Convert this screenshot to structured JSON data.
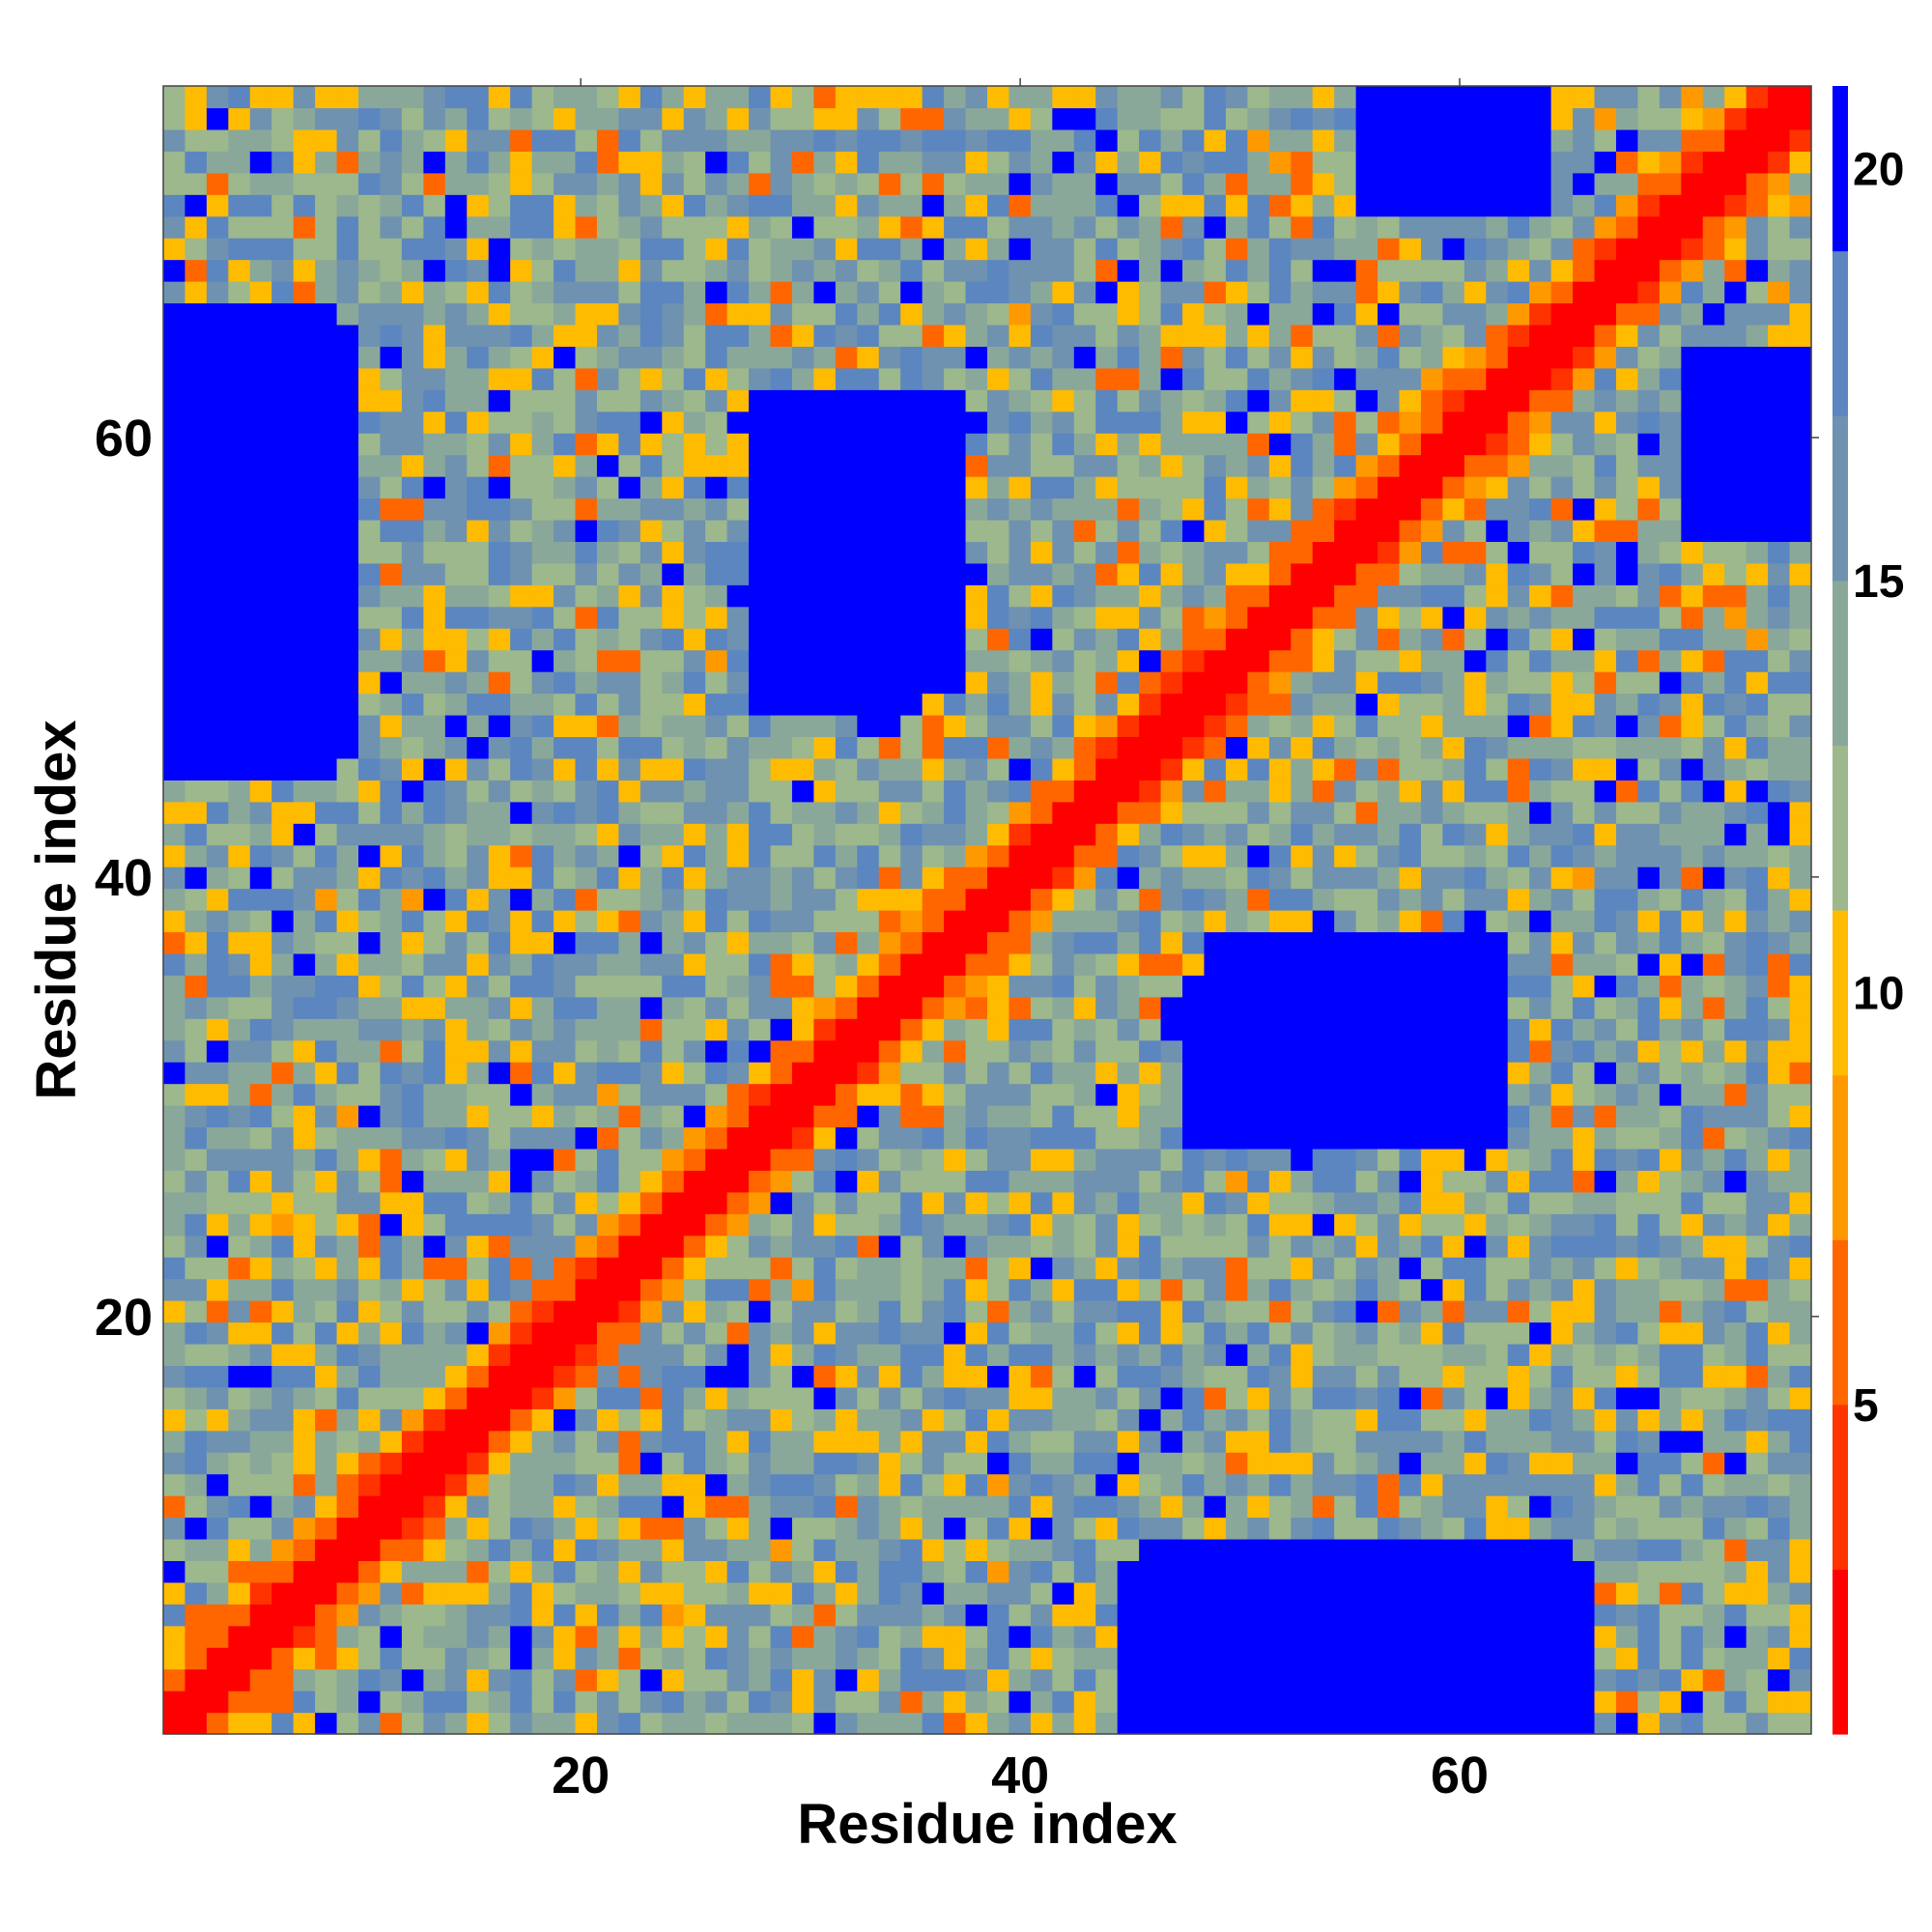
{
  "chart_data": {
    "type": "heatmap",
    "title": "",
    "xlabel": "Residue index",
    "ylabel": "Residue index",
    "n_residues": 76,
    "xlim": [
      1,
      76
    ],
    "ylim": [
      1,
      76
    ],
    "x_ticks": [
      "20",
      "40",
      "60"
    ],
    "y_ticks": [
      "20",
      "40",
      "60"
    ],
    "x_tick_values": [
      20,
      40,
      60
    ],
    "y_tick_values": [
      20,
      40,
      60
    ],
    "colorbar": {
      "range": [
        1,
        21
      ],
      "ticks": [
        "5",
        "10",
        "15",
        "20"
      ],
      "tick_values": [
        5,
        10,
        15,
        20
      ],
      "colors": [
        "#ff0000",
        "#ff3300",
        "#ff6600",
        "#ff9900",
        "#ffbb00",
        "#9cb88c",
        "#8aa89a",
        "#6f92b0",
        "#5b86c0",
        "#0000ff"
      ]
    },
    "value_unit_note": "",
    "values_encoding": "symmetric distance matrix; diagonal ~0, blocks of high distance (>=21) shown blue",
    "high_distance_blocks": [
      {
        "x_range": [
          1,
          9
        ],
        "y_range": [
          46,
          64
        ],
        "value": 21
      },
      {
        "x_range": [
          28,
          35
        ],
        "y_range": [
          48,
          62
        ],
        "value": 21
      },
      {
        "x_range": [
          49,
          62
        ],
        "y_range": [
          28,
          37
        ],
        "value": 21
      },
      {
        "x_range": [
          45,
          66
        ],
        "y_range": [
          1,
          8
        ],
        "value": 21
      },
      {
        "x_range": [
          56,
          64
        ],
        "y_range": [
          71,
          76
        ],
        "value": 21
      },
      {
        "x_range": [
          73,
          76
        ],
        "y_range": [
          57,
          63
        ],
        "value": 21
      }
    ]
  }
}
